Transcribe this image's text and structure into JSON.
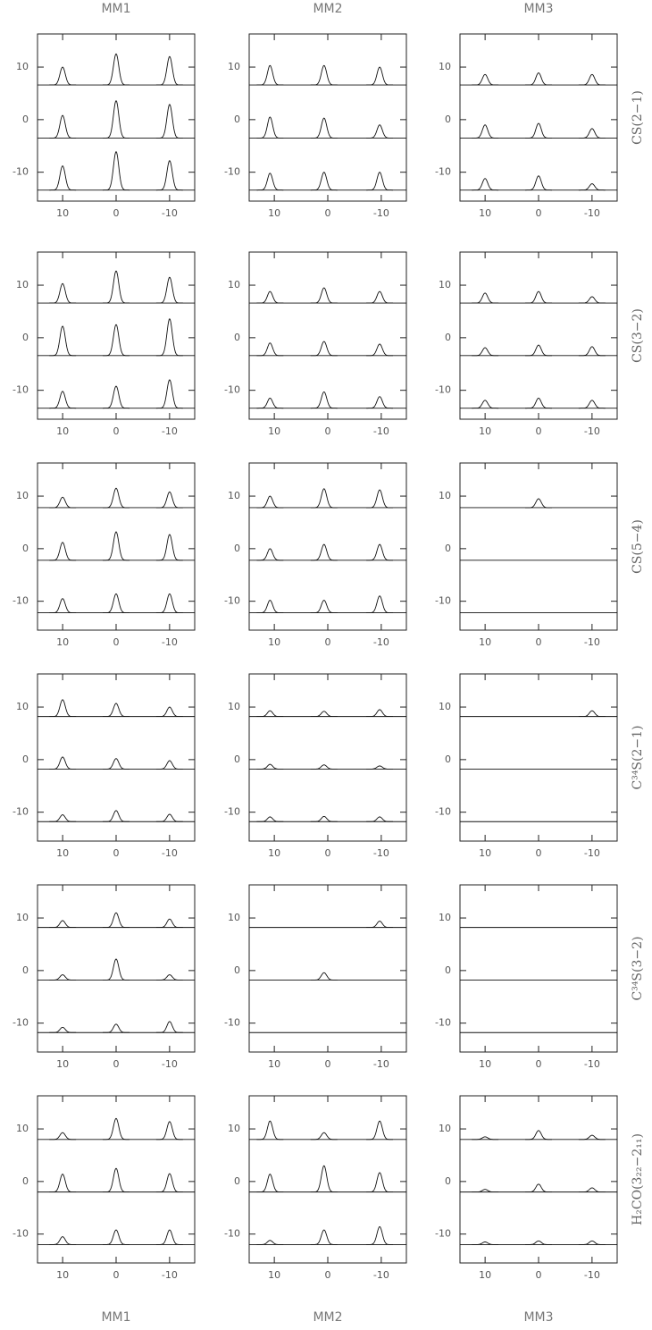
{
  "columns": [
    "MM1",
    "MM2",
    "MM3"
  ],
  "rows": [
    "CS(2−1)",
    "CS(3−2)",
    "CS(5−4)",
    "C³⁴S(2−1)",
    "C³⁴S(3−2)",
    "H₂CO(3₂₂−2₁₁)"
  ],
  "chart_data": [
    {
      "type": "line",
      "xlim": [
        14.7,
        -14.7
      ],
      "ylim": [
        -15.5,
        16.3
      ],
      "xticks": [
        10,
        0,
        -10
      ],
      "yticks": [
        10,
        0,
        -10
      ],
      "series": [
        {
          "baseline": 6.6,
          "x": [
            10,
            0,
            -10
          ],
          "values": [
            10,
            12.5,
            12
          ]
        },
        {
          "baseline": -3.5,
          "x": [
            10,
            0,
            -10
          ],
          "values": [
            0.8,
            3.6,
            2.9
          ]
        },
        {
          "baseline": -13.4,
          "x": [
            10,
            0,
            -10
          ],
          "values": [
            -8.8,
            -6.1,
            -7.8
          ]
        }
      ]
    },
    {
      "type": "line",
      "xlim": [
        14.7,
        -14.7
      ],
      "ylim": [
        -15.5,
        16.3
      ],
      "xticks": [
        10,
        0,
        -10
      ],
      "yticks": [
        10,
        0,
        -10
      ],
      "series": [
        {
          "baseline": 6.6,
          "x": [
            10.8,
            0.7,
            -9.7
          ],
          "values": [
            10.3,
            10.3,
            10
          ]
        },
        {
          "baseline": -3.5,
          "x": [
            10.8,
            0.7,
            -9.7
          ],
          "values": [
            0.5,
            0.3,
            -1
          ]
        },
        {
          "baseline": -13.4,
          "x": [
            10.8,
            0.7,
            -9.7
          ],
          "values": [
            -10.2,
            -10,
            -10
          ]
        }
      ]
    },
    {
      "type": "line",
      "xlim": [
        14.7,
        -14.7
      ],
      "ylim": [
        -15.5,
        16.3
      ],
      "xticks": [
        10,
        0,
        -10
      ],
      "yticks": [
        10,
        0,
        -10
      ],
      "series": [
        {
          "baseline": 6.6,
          "x": [
            10,
            0,
            -10
          ],
          "values": [
            8.6,
            8.9,
            8.6
          ]
        },
        {
          "baseline": -3.5,
          "x": [
            10,
            0,
            -10
          ],
          "values": [
            -1,
            -0.7,
            -1.7
          ]
        },
        {
          "baseline": -13.4,
          "x": [
            10,
            0,
            -10
          ],
          "values": [
            -11.2,
            -10.7,
            -12.2
          ]
        }
      ]
    },
    {
      "type": "line",
      "xlim": [
        14.7,
        -14.7
      ],
      "ylim": [
        -15.5,
        16.3
      ],
      "xticks": [
        10,
        0,
        -10
      ],
      "yticks": [
        10,
        0,
        -10
      ],
      "series": [
        {
          "baseline": 6.6,
          "x": [
            10,
            0,
            -10
          ],
          "values": [
            10.3,
            12.7,
            11.5
          ]
        },
        {
          "baseline": -3.4,
          "x": [
            10,
            0,
            -10
          ],
          "values": [
            2.2,
            2.5,
            3.6
          ]
        },
        {
          "baseline": -13.4,
          "x": [
            10,
            0,
            -10
          ],
          "values": [
            -10.2,
            -9.2,
            -8
          ]
        }
      ]
    },
    {
      "type": "line",
      "xlim": [
        14.7,
        -14.7
      ],
      "ylim": [
        -15.5,
        16.3
      ],
      "xticks": [
        10,
        0,
        -10
      ],
      "yticks": [
        10,
        0,
        -10
      ],
      "series": [
        {
          "baseline": 6.6,
          "x": [
            10.8,
            0.7,
            -9.7
          ],
          "values": [
            8.8,
            9.5,
            8.8
          ]
        },
        {
          "baseline": -3.4,
          "x": [
            10.8,
            0.7,
            -9.7
          ],
          "values": [
            -1,
            -0.7,
            -1.2
          ]
        },
        {
          "baseline": -13.4,
          "x": [
            10.8,
            0.7,
            -9.7
          ],
          "values": [
            -11.5,
            -10.3,
            -11.2
          ]
        }
      ]
    },
    {
      "type": "line",
      "xlim": [
        14.7,
        -14.7
      ],
      "ylim": [
        -15.5,
        16.3
      ],
      "xticks": [
        10,
        0,
        -10
      ],
      "yticks": [
        10,
        0,
        -10
      ],
      "series": [
        {
          "baseline": 6.6,
          "x": [
            10,
            0,
            -10
          ],
          "values": [
            8.5,
            8.8,
            7.8
          ]
        },
        {
          "baseline": -3.4,
          "x": [
            10,
            0,
            -10
          ],
          "values": [
            -1.9,
            -1.4,
            -1.7
          ]
        },
        {
          "baseline": -13.4,
          "x": [
            10,
            0,
            -10
          ],
          "values": [
            -11.9,
            -11.5,
            -11.9
          ]
        }
      ]
    },
    {
      "type": "line",
      "xlim": [
        14.7,
        -14.7
      ],
      "ylim": [
        -15.5,
        16.3
      ],
      "xticks": [
        10,
        0,
        -10
      ],
      "yticks": [
        10,
        0,
        -10
      ],
      "series": [
        {
          "baseline": 7.8,
          "x": [
            10,
            0,
            -10
          ],
          "values": [
            9.8,
            11.5,
            10.8
          ]
        },
        {
          "baseline": -2.2,
          "x": [
            10,
            0,
            -10
          ],
          "values": [
            1.2,
            3.2,
            2.7
          ]
        },
        {
          "baseline": -12.2,
          "x": [
            10,
            0,
            -10
          ],
          "values": [
            -9.5,
            -8.6,
            -8.6
          ]
        }
      ]
    },
    {
      "type": "line",
      "xlim": [
        14.7,
        -14.7
      ],
      "ylim": [
        -15.5,
        16.3
      ],
      "xticks": [
        10,
        0,
        -10
      ],
      "yticks": [
        10,
        0,
        -10
      ],
      "series": [
        {
          "baseline": 7.8,
          "x": [
            10.8,
            0.7,
            -9.7
          ],
          "values": [
            10,
            11.4,
            11.2
          ]
        },
        {
          "baseline": -2.2,
          "x": [
            10.8,
            0.7,
            -9.7
          ],
          "values": [
            0,
            0.8,
            0.8
          ]
        },
        {
          "baseline": -12.2,
          "x": [
            10.8,
            0.7,
            -9.7
          ],
          "values": [
            -9.8,
            -9.8,
            -9
          ]
        }
      ]
    },
    {
      "type": "line",
      "xlim": [
        14.7,
        -14.7
      ],
      "ylim": [
        -15.5,
        16.3
      ],
      "xticks": [
        10,
        0,
        -10
      ],
      "yticks": [
        10,
        0,
        -10
      ],
      "series": [
        {
          "baseline": 7.8,
          "x": [
            10,
            0,
            -10
          ],
          "values": [
            null,
            9.5,
            null
          ]
        },
        {
          "baseline": -2.2,
          "x": [
            10,
            0,
            -10
          ],
          "values": [
            null,
            null,
            null
          ]
        },
        {
          "baseline": -12.2,
          "x": [
            10,
            0,
            -10
          ],
          "values": [
            null,
            null,
            null
          ]
        }
      ]
    },
    {
      "type": "line",
      "xlim": [
        14.7,
        -14.7
      ],
      "ylim": [
        -15.5,
        16.3
      ],
      "xticks": [
        10,
        0,
        -10
      ],
      "yticks": [
        10,
        0,
        -10
      ],
      "series": [
        {
          "baseline": 8.2,
          "x": [
            10,
            0,
            -10
          ],
          "values": [
            11.4,
            10.7,
            10
          ]
        },
        {
          "baseline": -1.8,
          "x": [
            10,
            0,
            -10
          ],
          "values": [
            0.5,
            0.2,
            -0.2
          ]
        },
        {
          "baseline": -11.8,
          "x": [
            10,
            0,
            -10
          ],
          "values": [
            -10.5,
            -9.7,
            -10.4
          ]
        }
      ]
    },
    {
      "type": "line",
      "xlim": [
        14.7,
        -14.7
      ],
      "ylim": [
        -15.5,
        16.3
      ],
      "xticks": [
        10,
        0,
        -10
      ],
      "yticks": [
        10,
        0,
        -10
      ],
      "series": [
        {
          "baseline": 8.2,
          "x": [
            10.8,
            0.7,
            -9.7
          ],
          "values": [
            9.3,
            9.2,
            9.5
          ]
        },
        {
          "baseline": -1.8,
          "x": [
            10.8,
            0.7,
            -9.7
          ],
          "values": [
            -0.9,
            -1,
            -1.2
          ]
        },
        {
          "baseline": -11.8,
          "x": [
            10.8,
            0.7,
            -9.7
          ],
          "values": [
            -10.9,
            -10.8,
            -10.9
          ]
        }
      ]
    },
    {
      "type": "line",
      "xlim": [
        14.7,
        -14.7
      ],
      "ylim": [
        -15.5,
        16.3
      ],
      "xticks": [
        10,
        0,
        -10
      ],
      "yticks": [
        10,
        0,
        -10
      ],
      "series": [
        {
          "baseline": 8.2,
          "x": [
            10,
            0,
            -10
          ],
          "values": [
            null,
            null,
            9.3
          ]
        },
        {
          "baseline": -1.8,
          "x": [
            10,
            0,
            -10
          ],
          "values": [
            null,
            null,
            null
          ]
        },
        {
          "baseline": -11.8,
          "x": [
            10,
            0,
            -10
          ],
          "values": [
            null,
            null,
            null
          ]
        }
      ]
    },
    {
      "type": "line",
      "xlim": [
        14.7,
        -14.7
      ],
      "ylim": [
        -15.5,
        16.3
      ],
      "xticks": [
        10,
        0,
        -10
      ],
      "yticks": [
        10,
        0,
        -10
      ],
      "series": [
        {
          "baseline": 8.2,
          "x": [
            10,
            0,
            -10
          ],
          "values": [
            9.5,
            11,
            9.8
          ]
        },
        {
          "baseline": -1.8,
          "x": [
            10,
            0,
            -10
          ],
          "values": [
            -0.8,
            2.2,
            -0.8
          ]
        },
        {
          "baseline": -11.8,
          "x": [
            10,
            0,
            -10
          ],
          "values": [
            -10.8,
            -10.2,
            -9.7
          ]
        }
      ]
    },
    {
      "type": "line",
      "xlim": [
        14.7,
        -14.7
      ],
      "ylim": [
        -15.5,
        16.3
      ],
      "xticks": [
        10,
        0,
        -10
      ],
      "yticks": [
        10,
        0,
        -10
      ],
      "series": [
        {
          "baseline": 8.2,
          "x": [
            10.8,
            0.7,
            -9.7
          ],
          "values": [
            null,
            null,
            9.4
          ]
        },
        {
          "baseline": -1.8,
          "x": [
            10.8,
            0.7,
            -9.7
          ],
          "values": [
            null,
            -0.4,
            null
          ]
        },
        {
          "baseline": -11.8,
          "x": [
            10.8,
            0.7,
            -9.7
          ],
          "values": [
            null,
            null,
            null
          ]
        }
      ]
    },
    {
      "type": "line",
      "xlim": [
        14.7,
        -14.7
      ],
      "ylim": [
        -15.5,
        16.3
      ],
      "xticks": [
        10,
        0,
        -10
      ],
      "yticks": [
        10,
        0,
        -10
      ],
      "series": [
        {
          "baseline": 8.2,
          "x": [
            10,
            0,
            -10
          ],
          "values": [
            null,
            null,
            null
          ]
        },
        {
          "baseline": -1.8,
          "x": [
            10,
            0,
            -10
          ],
          "values": [
            null,
            null,
            null
          ]
        },
        {
          "baseline": -11.8,
          "x": [
            10,
            0,
            -10
          ],
          "values": [
            null,
            null,
            null
          ]
        }
      ]
    },
    {
      "type": "line",
      "xlim": [
        14.7,
        -14.7
      ],
      "ylim": [
        -15.5,
        16.3
      ],
      "xticks": [
        10,
        0,
        -10
      ],
      "yticks": [
        10,
        0,
        -10
      ],
      "series": [
        {
          "baseline": 8,
          "x": [
            10,
            0,
            -10
          ],
          "values": [
            9.3,
            12,
            11.4
          ]
        },
        {
          "baseline": -2,
          "x": [
            10,
            0,
            -10
          ],
          "values": [
            1.4,
            2.5,
            1.5
          ]
        },
        {
          "baseline": -12,
          "x": [
            10,
            0,
            -10
          ],
          "values": [
            -10.5,
            -9.2,
            -9.2
          ]
        }
      ]
    },
    {
      "type": "line",
      "xlim": [
        14.7,
        -14.7
      ],
      "ylim": [
        -15.5,
        16.3
      ],
      "xticks": [
        10,
        0,
        -10
      ],
      "yticks": [
        10,
        0,
        -10
      ],
      "series": [
        {
          "baseline": 8,
          "x": [
            10.8,
            0.7,
            -9.7
          ],
          "values": [
            11.5,
            9.3,
            11.5
          ]
        },
        {
          "baseline": -2,
          "x": [
            10.8,
            0.7,
            -9.7
          ],
          "values": [
            1.4,
            3,
            1.7
          ]
        },
        {
          "baseline": -12,
          "x": [
            10.8,
            0.7,
            -9.7
          ],
          "values": [
            -11.2,
            -9.2,
            -8.6
          ]
        }
      ]
    },
    {
      "type": "line",
      "xlim": [
        14.7,
        -14.7
      ],
      "ylim": [
        -15.5,
        16.3
      ],
      "xticks": [
        10,
        0,
        -10
      ],
      "yticks": [
        10,
        0,
        -10
      ],
      "series": [
        {
          "baseline": 8,
          "x": [
            10,
            0,
            -10
          ],
          "values": [
            8.5,
            9.7,
            8.8
          ]
        },
        {
          "baseline": -2,
          "x": [
            10,
            0,
            -10
          ],
          "values": [
            -1.5,
            -0.5,
            -1.2
          ]
        },
        {
          "baseline": -12,
          "x": [
            10,
            0,
            -10
          ],
          "values": [
            -11.5,
            -11.3,
            -11.3
          ]
        }
      ]
    }
  ]
}
